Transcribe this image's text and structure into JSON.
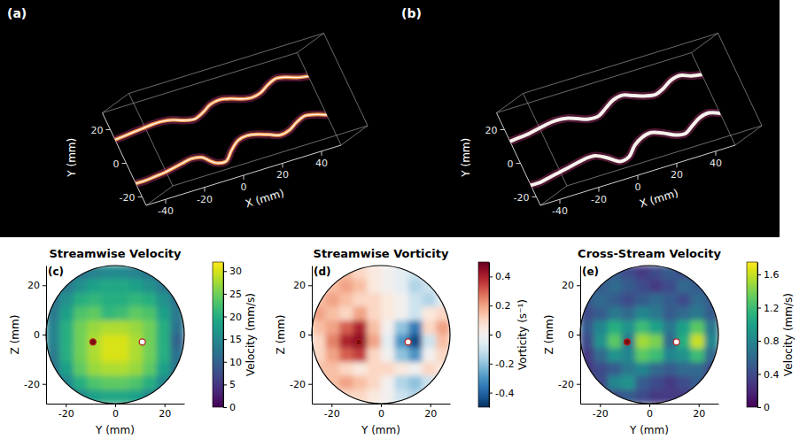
{
  "chart_data": [
    {
      "type": "line",
      "annotation": "(a)",
      "xlabel": "X (mm)",
      "ylabel": "Y (mm)",
      "xlim": [
        -50,
        50
      ],
      "ylim": [
        -25,
        30
      ],
      "xticks": [
        -40,
        -20,
        0,
        20,
        40
      ],
      "yticks": [
        -20,
        0,
        20
      ],
      "x": [
        -50,
        -45,
        -40,
        -35,
        -30,
        -25,
        -20,
        -15,
        -10,
        -5,
        0,
        5,
        10,
        15,
        20,
        25,
        30,
        35,
        40,
        45,
        50
      ],
      "series": [
        {
          "color": "#f59a4e",
          "values": [
            14,
            14.5,
            15,
            15.5,
            16,
            16,
            15,
            13,
            12,
            14,
            17,
            18,
            17,
            15,
            14,
            15,
            18,
            20,
            19,
            17,
            16
          ]
        },
        {
          "color": "#f59a4e",
          "values": [
            -12,
            -12,
            -11.5,
            -11,
            -10,
            -9,
            -8,
            -9,
            -14,
            -15,
            -10,
            -6,
            -5,
            -6,
            -8,
            -10,
            -9,
            -6,
            -4,
            -5,
            -7
          ]
        }
      ]
    },
    {
      "type": "line",
      "annotation": "(b)",
      "xlabel": "X (mm)",
      "ylabel": "Y (mm)",
      "xlim": [
        -50,
        50
      ],
      "ylim": [
        -25,
        30
      ],
      "xticks": [
        -40,
        -20,
        0,
        20,
        40
      ],
      "yticks": [
        -20,
        0,
        20
      ],
      "x": [
        -50,
        -45,
        -40,
        -35,
        -30,
        -25,
        -20,
        -15,
        -10,
        -5,
        0,
        5,
        10,
        15,
        20,
        25,
        30,
        35,
        40,
        45,
        50
      ],
      "series": [
        {
          "color": "#eeeeee",
          "values": [
            13,
            13.5,
            14,
            15,
            16,
            16.5,
            16,
            14,
            12,
            12,
            15,
            18,
            19,
            17,
            15,
            14,
            16,
            19,
            20,
            18,
            17
          ]
        },
        {
          "color": "#eeeeee",
          "values": [
            -13,
            -13,
            -12,
            -11,
            -10,
            -9,
            -8,
            -8,
            -11,
            -15,
            -14,
            -9,
            -6,
            -5,
            -7,
            -10,
            -11,
            -8,
            -5,
            -4,
            -6
          ]
        }
      ]
    },
    {
      "type": "heatmap",
      "annotation": "(c)",
      "title": "Streamwise Velocity",
      "xlabel": "Y (mm)",
      "ylabel": "Z (mm)",
      "xlim": [
        -28,
        28
      ],
      "ylim": [
        -28,
        28
      ],
      "xticks": [
        -20,
        0,
        20
      ],
      "yticks": [
        -20,
        0,
        20
      ],
      "color": "viridis",
      "x": [
        -25.2,
        -19.6,
        -14,
        -8.4,
        -2.8,
        2.8,
        8.4,
        14,
        19.6,
        25.2
      ],
      "y": [
        25.2,
        19.6,
        14,
        8.4,
        2.8,
        -2.8,
        -8.4,
        -14,
        -19.6,
        -25.2
      ],
      "values": [
        [
          8,
          10,
          12,
          14,
          15,
          15,
          14,
          12,
          10,
          8
        ],
        [
          10,
          13,
          16,
          18,
          19,
          19,
          18,
          16,
          13,
          10
        ],
        [
          12,
          16,
          20,
          21,
          20,
          20,
          21,
          20,
          16,
          12
        ],
        [
          13,
          18,
          23,
          24,
          21,
          22,
          24,
          23,
          18,
          13
        ],
        [
          14,
          20,
          25,
          27,
          28,
          28,
          27,
          25,
          20,
          12
        ],
        [
          14,
          20,
          25,
          28,
          30,
          30,
          28,
          25,
          20,
          10
        ],
        [
          13,
          20,
          25,
          28,
          30,
          30,
          28,
          25,
          20,
          12
        ],
        [
          12,
          18,
          24,
          27,
          28,
          28,
          27,
          24,
          18,
          12
        ],
        [
          10,
          15,
          20,
          23,
          24,
          24,
          23,
          20,
          15,
          10
        ],
        [
          8,
          11,
          15,
          18,
          19,
          19,
          18,
          15,
          11,
          8
        ]
      ],
      "clim": [
        0,
        32
      ],
      "cticks": [
        0,
        5,
        10,
        15,
        20,
        25,
        30
      ],
      "clabel": "Velocity (mm/s)",
      "points": {
        "x": [
          -9,
          11
        ],
        "y": [
          -3,
          -3
        ],
        "colors": [
          "#7b0d0d",
          "#ffffff"
        ]
      }
    },
    {
      "type": "heatmap",
      "annotation": "(d)",
      "title": "Streamwise Vorticity",
      "xlabel": "Y (mm)",
      "ylabel": "Z (mm)",
      "xlim": [
        -28,
        28
      ],
      "ylim": [
        -28,
        28
      ],
      "xticks": [
        -20,
        0,
        20
      ],
      "yticks": [
        -20,
        0,
        20
      ],
      "color": "RdBu_r",
      "x": [
        -25.2,
        -19.6,
        -14,
        -8.4,
        -2.8,
        2.8,
        8.4,
        14,
        19.6,
        25.2
      ],
      "y": [
        25.2,
        19.6,
        14,
        8.4,
        2.8,
        -2.8,
        -8.4,
        -14,
        -19.6,
        -25.2
      ],
      "values": [
        [
          0.05,
          0.1,
          0.15,
          0.1,
          0.05,
          0,
          -0.05,
          -0.1,
          0,
          0.05
        ],
        [
          0.1,
          0.15,
          0.2,
          0.15,
          0.05,
          0,
          -0.05,
          -0.15,
          -0.1,
          0
        ],
        [
          0.15,
          0.2,
          0.15,
          0.1,
          0.1,
          0.05,
          0,
          -0.1,
          -0.15,
          -0.05
        ],
        [
          0.2,
          0.15,
          0.1,
          0.2,
          0.1,
          0.05,
          0,
          -0.1,
          0.05,
          0.1
        ],
        [
          0.15,
          0.2,
          0.3,
          0.4,
          0.15,
          0,
          -0.2,
          -0.35,
          0.1,
          0.2
        ],
        [
          0.1,
          0.25,
          0.4,
          0.45,
          0.2,
          -0.05,
          -0.3,
          -0.45,
          -0.1,
          0.15
        ],
        [
          0.1,
          0.2,
          0.3,
          0.35,
          0.1,
          0,
          -0.2,
          -0.3,
          0,
          0.1
        ],
        [
          0.15,
          0.15,
          0.1,
          0.05,
          0.1,
          0.1,
          0.05,
          0,
          0.1,
          0.05
        ],
        [
          0.1,
          0.15,
          0.2,
          0.15,
          0.1,
          0,
          -0.15,
          -0.2,
          -0.1,
          0
        ],
        [
          0.05,
          0.1,
          0.1,
          0.1,
          0.05,
          0,
          -0.1,
          -0.15,
          -0.05,
          0
        ]
      ],
      "clim": [
        -0.5,
        0.5
      ],
      "cticks": [
        -0.4,
        -0.2,
        0,
        0.2,
        0.4
      ],
      "clabel": "Vorticity (s⁻¹)",
      "points": {
        "x": [
          -9,
          11
        ],
        "y": [
          -3,
          -3
        ],
        "colors": [
          "#7b0d0d",
          "#ffffff"
        ]
      }
    },
    {
      "type": "heatmap",
      "annotation": "(e)",
      "title": "Cross-Stream Velocity",
      "xlabel": "Y (mm)",
      "ylabel": "Z (mm)",
      "xlim": [
        -28,
        28
      ],
      "ylim": [
        -28,
        28
      ],
      "xticks": [
        -20,
        0,
        20
      ],
      "yticks": [
        -20,
        0,
        20
      ],
      "color": "viridis",
      "x": [
        -25.2,
        -19.6,
        -14,
        -8.4,
        -2.8,
        2.8,
        8.4,
        14,
        19.6,
        25.2
      ],
      "y": [
        25.2,
        19.6,
        14,
        8.4,
        2.8,
        -2.8,
        -8.4,
        -14,
        -19.6,
        -25.2
      ],
      "values": [
        [
          0.3,
          0.4,
          0.5,
          0.4,
          0.3,
          0.4,
          0.5,
          0.4,
          0.3,
          0.3
        ],
        [
          0.4,
          0.5,
          0.6,
          0.5,
          0.4,
          0.3,
          0.4,
          0.6,
          0.5,
          0.4
        ],
        [
          0.5,
          0.6,
          0.5,
          0.4,
          0.5,
          0.6,
          0.5,
          0.4,
          0.6,
          0.5
        ],
        [
          0.4,
          0.5,
          0.7,
          0.6,
          0.8,
          0.7,
          0.5,
          0.6,
          0.7,
          0.5
        ],
        [
          0.5,
          0.8,
          1.1,
          0.9,
          1.2,
          1,
          0.7,
          1,
          1.3,
          0.7
        ],
        [
          0.4,
          0.9,
          1.3,
          0.7,
          1.5,
          1.4,
          0.6,
          1.1,
          1.6,
          0.8
        ],
        [
          0.3,
          0.6,
          0.9,
          0.8,
          1.3,
          1.2,
          0.8,
          0.9,
          1.2,
          0.6
        ],
        [
          0.3,
          0.4,
          0.5,
          0.7,
          0.8,
          0.6,
          0.5,
          0.6,
          0.6,
          0.4
        ],
        [
          0.3,
          0.4,
          0.8,
          0.9,
          0.5,
          0.4,
          0.3,
          0.4,
          0.5,
          0.3
        ],
        [
          0.2,
          0.3,
          0.4,
          0.5,
          0.4,
          0.3,
          0.3,
          0.3,
          0.3,
          0.2
        ]
      ],
      "clim": [
        0,
        1.75
      ],
      "cticks": [
        0,
        0.4,
        0.8,
        1.2,
        1.6
      ],
      "clabel": "Velocity (mm/s)",
      "points": {
        "x": [
          -9,
          11
        ],
        "y": [
          -3,
          -3
        ],
        "colors": [
          "#7b0d0d",
          "#ffffff"
        ]
      }
    }
  ]
}
